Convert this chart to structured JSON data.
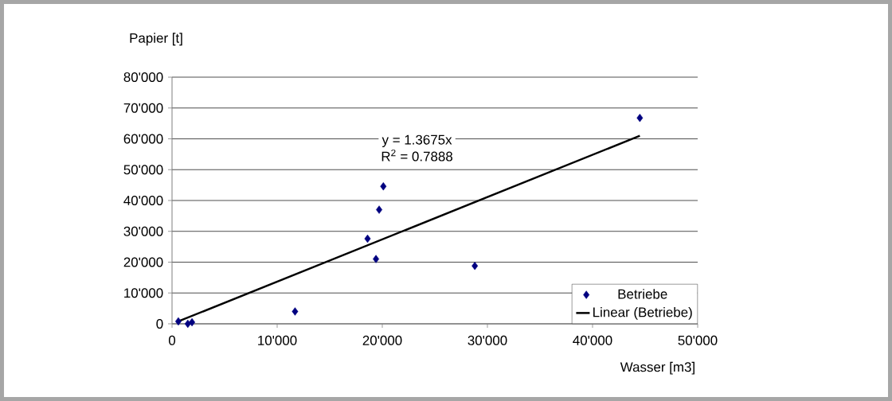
{
  "chart_data": {
    "type": "scatter",
    "xlabel": "Wasser [m3]",
    "ylabel": "Papier [t]",
    "annotations": [
      "y = 1.3675x",
      "R$^{2}$ = 0.7888"
    ],
    "series": [
      {
        "name": "Betriebe",
        "color": "#000080",
        "marker": "diamond",
        "x": [
          600,
          1500,
          1900,
          11700,
          18600,
          19400,
          19700,
          20100,
          28800,
          44500
        ],
        "values": [
          800,
          0,
          500,
          4000,
          27600,
          21000,
          37000,
          44600,
          18800,
          66800
        ]
      },
      {
        "name": "Linear (Betriebe)",
        "type": "line",
        "color": "#000000",
        "marker": "none",
        "line_style": "solid",
        "x": [
          600,
          44500
        ],
        "values": [
          800,
          61000
        ]
      }
    ],
    "xlim": [
      0,
      50000
    ],
    "ylim": [
      0,
      80000
    ],
    "xticks": [
      0,
      {
        "value": 10000,
        "label": "10'000"
      },
      {
        "value": 20000,
        "label": "20'000"
      },
      {
        "value": 30000,
        "label": "30'000"
      },
      {
        "value": 40000,
        "label": "40'000"
      },
      {
        "value": 50000,
        "label": "50'000"
      }
    ],
    "yticks": [
      0,
      {
        "value": 10000,
        "label": "10'000"
      },
      {
        "value": 20000,
        "label": "20'000"
      },
      {
        "value": 30000,
        "label": "30'000"
      },
      {
        "value": 40000,
        "label": "40'000"
      },
      {
        "value": 50000,
        "label": "50'000"
      },
      {
        "value": 60000,
        "label": "60'000"
      },
      {
        "value": 70000,
        "label": "70'000"
      },
      {
        "value": 80000,
        "label": "80'000"
      }
    ],
    "grid": "y",
    "legend": "bottom right"
  }
}
